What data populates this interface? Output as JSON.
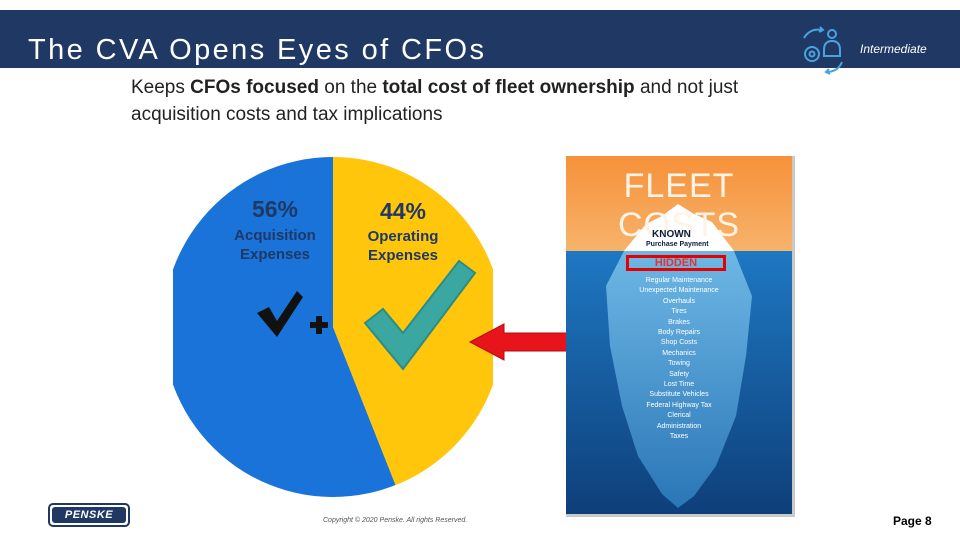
{
  "header": {
    "title": "The CVA Opens Eyes of CFOs",
    "level": "Intermediate",
    "icon": "gear-person-cycle-icon",
    "background": "#1f3864"
  },
  "body": {
    "segments": [
      {
        "text": "Keeps ",
        "bold": false
      },
      {
        "text": "CFOs focused",
        "bold": true
      },
      {
        "text": " on the ",
        "bold": false
      },
      {
        "text": "total cost of fleet ownership",
        "bold": true
      },
      {
        "text": " and not just acquisition costs and tax implications",
        "bold": false
      }
    ]
  },
  "pie": {
    "slices": [
      {
        "percent": "56%",
        "value": 56,
        "label_line1": "Acquisition",
        "label_line2": "Expenses",
        "color": "#1a73d9"
      },
      {
        "percent": "44%",
        "value": 44,
        "label_line1": "Operating",
        "label_line2": "Expenses",
        "color": "#ffc60b"
      }
    ],
    "check_black_icon": "check-icon",
    "plus_icon": "plus-icon",
    "check_teal_icon": "check-icon"
  },
  "arrow": {
    "icon": "left-arrow-icon",
    "color": "#e8141b"
  },
  "iceberg": {
    "title": "FLEET COSTS",
    "known": "KNOWN",
    "purchase": "Purchase Payment",
    "hidden": "HIDDEN",
    "items": [
      "Regular Maintenance",
      "Unexpected Maintenance",
      "Overhauls",
      "Tires",
      "Brakes",
      "Body Repairs",
      "Shop Costs",
      "Mechanics",
      "Towing",
      "Safety",
      "Lost Time",
      "Substitute Vehicles",
      "Federal Highway Tax",
      "Clerical",
      "Administration",
      "Taxes"
    ]
  },
  "footer": {
    "logo": "PENSKE",
    "copyright": "Copyright © 2020 Penske. All rights Reserved.",
    "page": "Page 8"
  }
}
